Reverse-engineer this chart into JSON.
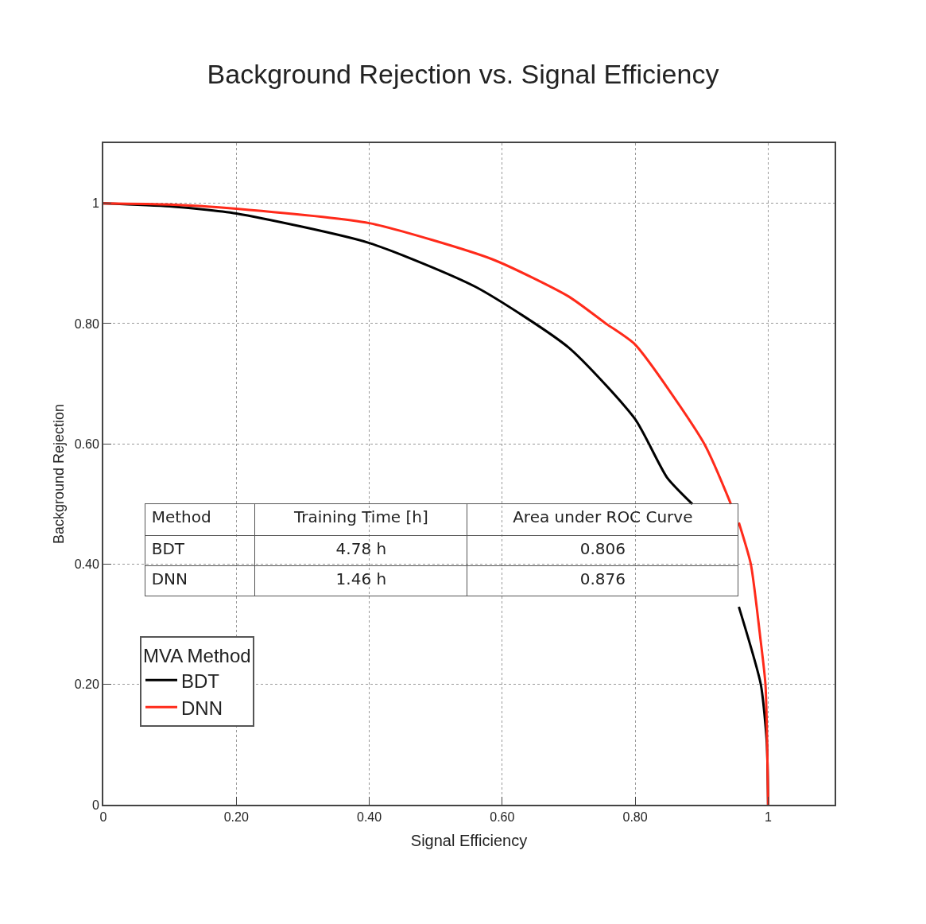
{
  "chart_data": {
    "type": "line",
    "title": "Background Rejection vs. Signal Efficiency",
    "xlabel": "Signal Efficiency",
    "ylabel": "Background Rejection",
    "legend_title": "MVA Method",
    "series": [
      {
        "name": "BDT",
        "color": "#000000",
        "x": [
          0,
          0.1,
          0.2,
          0.4,
          0.56,
          0.7,
          0.8,
          0.848,
          0.886,
          0.92,
          0.956,
          0.989,
          0.998,
          1
        ],
        "values": [
          1,
          0.995,
          0.983,
          0.934,
          0.861,
          0.76,
          0.641,
          0.544,
          0.5,
          null,
          0.329,
          0.2,
          0.104,
          0
        ]
      },
      {
        "name": "DNN",
        "color": "#ff2a1a",
        "x": [
          0,
          0.1,
          0.2,
          0.4,
          0.585,
          0.7,
          0.756,
          0.8,
          0.904,
          0.944,
          0.95,
          0.956,
          0.974,
          0.988,
          0.996,
          1
        ],
        "values": [
          1,
          0.998,
          0.991,
          0.967,
          0.907,
          0.845,
          0.8,
          0.765,
          0.6,
          0.5,
          null,
          0.469,
          0.4,
          0.28,
          0.2,
          0
        ]
      }
    ],
    "xlim": [
      0,
      1.1
    ],
    "ylim": [
      0,
      1.1
    ],
    "xticks": [
      0,
      {
        "value": 0.2,
        "label": "0.20"
      },
      {
        "value": 0.4,
        "label": "0.40"
      },
      {
        "value": 0.6,
        "label": "0.60"
      },
      {
        "value": 0.8,
        "label": "0.80"
      },
      1
    ],
    "yticks": [
      0,
      {
        "value": 0.2,
        "label": "0.20"
      },
      {
        "value": 0.4,
        "label": "0.40"
      },
      {
        "value": 0.6,
        "label": "0.60"
      },
      {
        "value": 0.8,
        "label": "0.80"
      },
      1
    ],
    "grid": true,
    "legend": "bottom left",
    "line_style": "solid",
    "marker": "none",
    "annotations": [
      "Method",
      "Training Time [h]",
      "Area under ROC Curve",
      "BDT",
      "4.78 h",
      "0.806",
      "DNN",
      "1.46 h",
      "0.876"
    ]
  }
}
